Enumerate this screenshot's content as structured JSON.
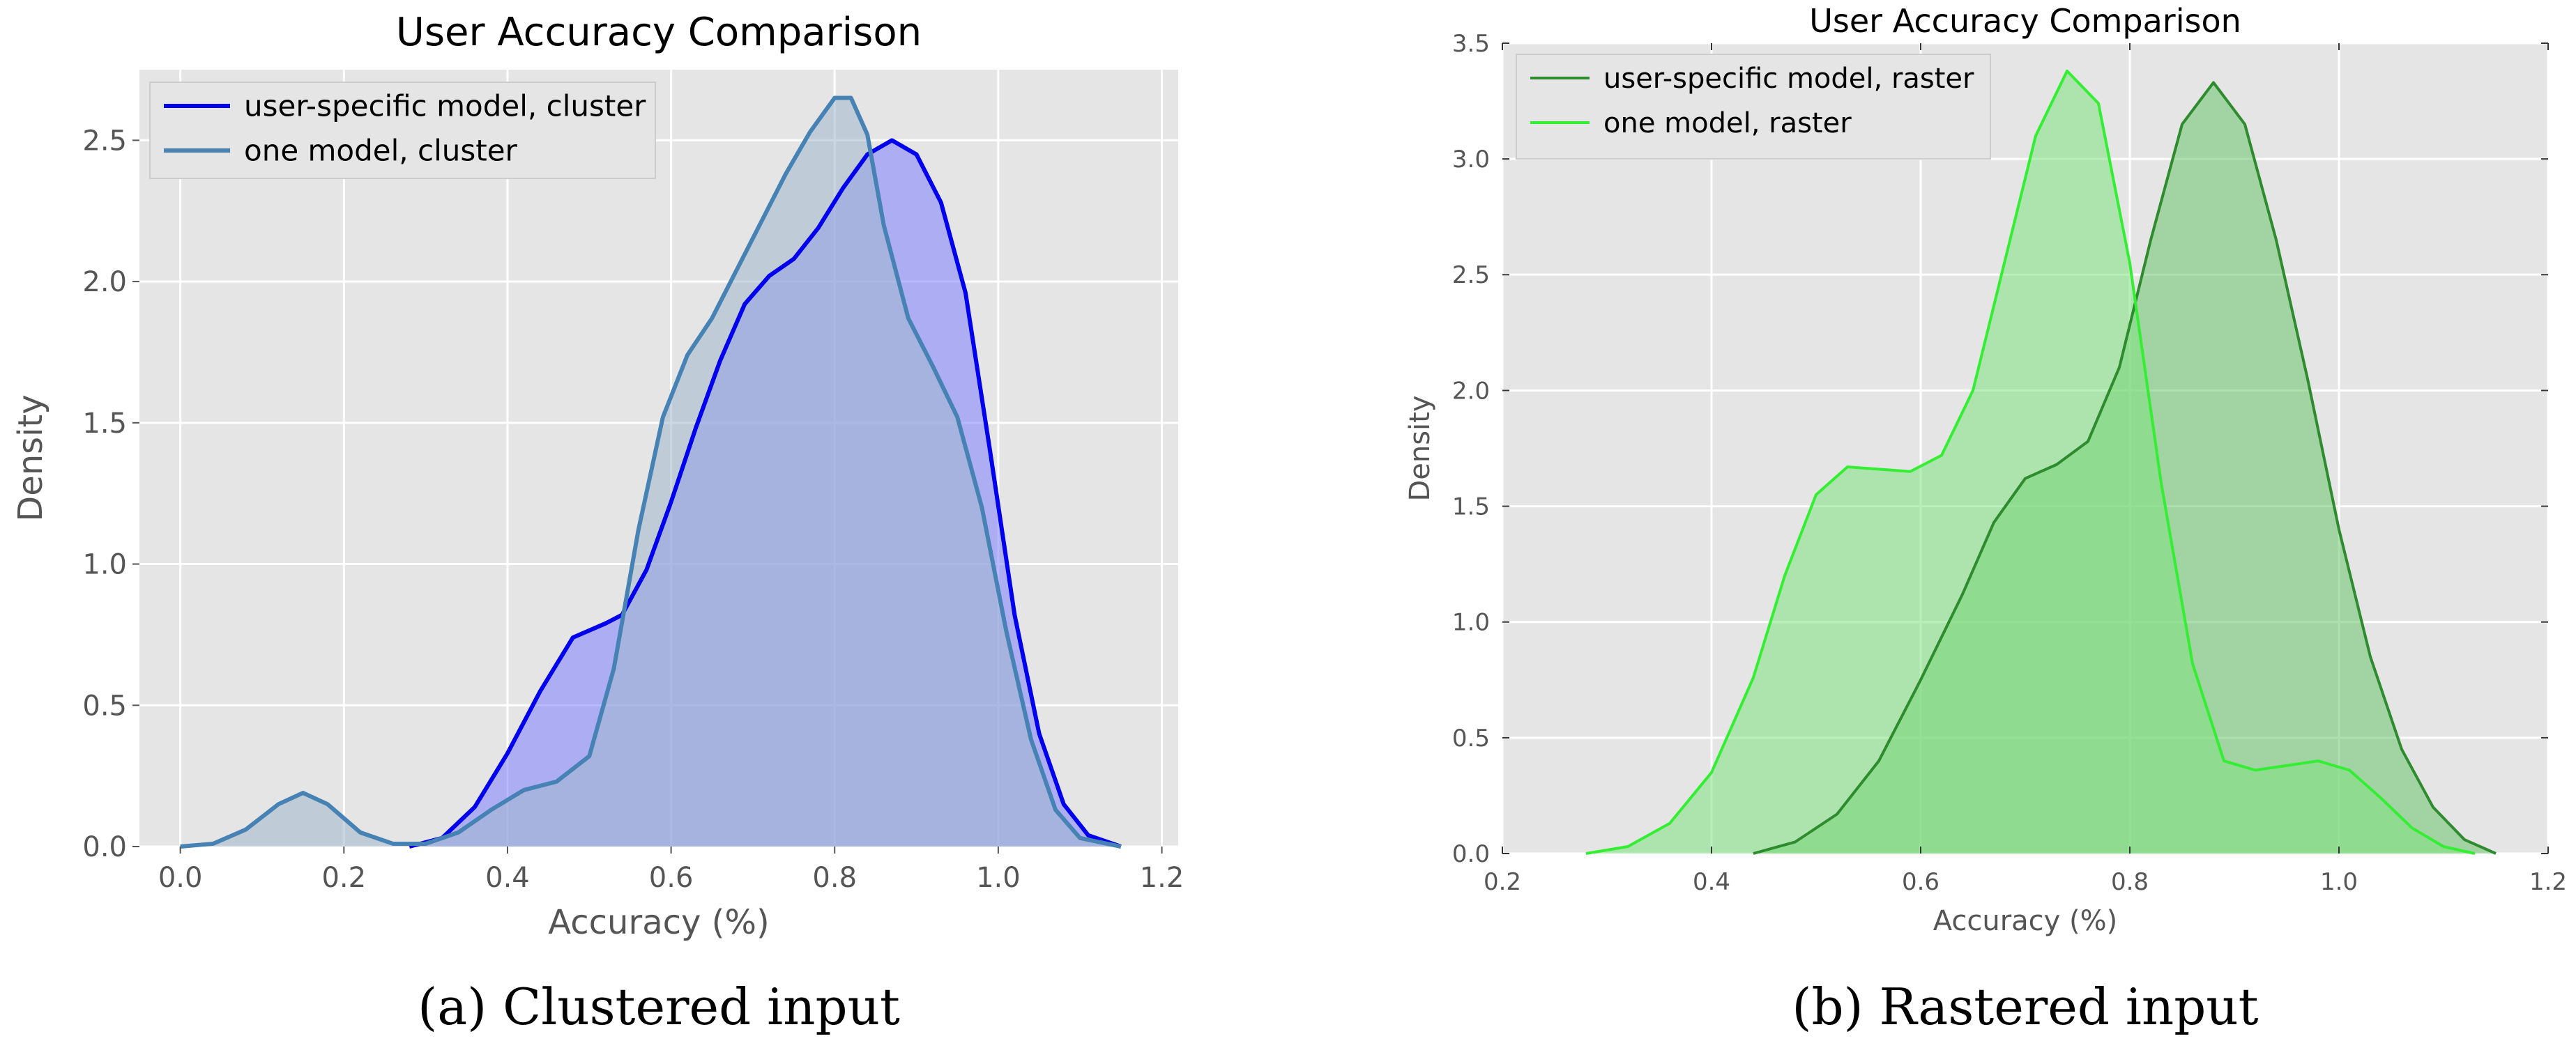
{
  "chart_data": [
    {
      "type": "area",
      "title": "User Accuracy Comparison",
      "xlabel": "Accuracy (%)",
      "ylabel": "Density",
      "caption": "(a) Clustered input",
      "xlim": [
        -0.05,
        1.22
      ],
      "ylim": [
        0,
        2.75
      ],
      "xticks": [
        0.0,
        0.2,
        0.4,
        0.6,
        0.8,
        1.0,
        1.2
      ],
      "xtick_labels": [
        "0.0",
        "0.2",
        "0.4",
        "0.6",
        "0.8",
        "1.0",
        "1.2"
      ],
      "yticks": [
        0.0,
        0.5,
        1.0,
        1.5,
        2.0,
        2.5
      ],
      "ytick_labels": [
        "0.0",
        "0.5",
        "1.0",
        "1.5",
        "2.0",
        "2.5"
      ],
      "grid": true,
      "legend": "top-left",
      "series": [
        {
          "name": "user-specific model, cluster",
          "color": "#0000ee",
          "fill": "#8080ff",
          "points": [
            [
              0.28,
              0.0
            ],
            [
              0.32,
              0.03
            ],
            [
              0.36,
              0.14
            ],
            [
              0.4,
              0.33
            ],
            [
              0.44,
              0.55
            ],
            [
              0.48,
              0.74
            ],
            [
              0.52,
              0.79
            ],
            [
              0.54,
              0.82
            ],
            [
              0.57,
              0.98
            ],
            [
              0.6,
              1.22
            ],
            [
              0.63,
              1.48
            ],
            [
              0.66,
              1.72
            ],
            [
              0.69,
              1.92
            ],
            [
              0.72,
              2.02
            ],
            [
              0.75,
              2.08
            ],
            [
              0.78,
              2.19
            ],
            [
              0.81,
              2.33
            ],
            [
              0.84,
              2.45
            ],
            [
              0.87,
              2.5
            ],
            [
              0.9,
              2.45
            ],
            [
              0.93,
              2.28
            ],
            [
              0.96,
              1.96
            ],
            [
              0.99,
              1.4
            ],
            [
              1.02,
              0.82
            ],
            [
              1.05,
              0.4
            ],
            [
              1.08,
              0.15
            ],
            [
              1.11,
              0.04
            ],
            [
              1.15,
              0.0
            ]
          ]
        },
        {
          "name": "one model, cluster",
          "color": "#4682b4",
          "fill": "#a0b8cc",
          "points": [
            [
              0.0,
              0.0
            ],
            [
              0.04,
              0.01
            ],
            [
              0.08,
              0.06
            ],
            [
              0.12,
              0.15
            ],
            [
              0.15,
              0.19
            ],
            [
              0.18,
              0.15
            ],
            [
              0.22,
              0.05
            ],
            [
              0.26,
              0.01
            ],
            [
              0.3,
              0.01
            ],
            [
              0.34,
              0.05
            ],
            [
              0.38,
              0.13
            ],
            [
              0.42,
              0.2
            ],
            [
              0.46,
              0.23
            ],
            [
              0.5,
              0.32
            ],
            [
              0.53,
              0.63
            ],
            [
              0.56,
              1.12
            ],
            [
              0.59,
              1.52
            ],
            [
              0.62,
              1.74
            ],
            [
              0.65,
              1.87
            ],
            [
              0.68,
              2.04
            ],
            [
              0.71,
              2.21
            ],
            [
              0.74,
              2.38
            ],
            [
              0.77,
              2.53
            ],
            [
              0.8,
              2.65
            ],
            [
              0.82,
              2.65
            ],
            [
              0.84,
              2.52
            ],
            [
              0.86,
              2.2
            ],
            [
              0.89,
              1.87
            ],
            [
              0.92,
              1.7
            ],
            [
              0.95,
              1.52
            ],
            [
              0.98,
              1.2
            ],
            [
              1.01,
              0.76
            ],
            [
              1.04,
              0.38
            ],
            [
              1.07,
              0.13
            ],
            [
              1.1,
              0.03
            ],
            [
              1.15,
              0.0
            ]
          ]
        }
      ]
    },
    {
      "type": "area",
      "title": "User Accuracy Comparison",
      "xlabel": "Accuracy (%)",
      "ylabel": "Density",
      "caption": "(b) Rastered input",
      "xlim": [
        0.2,
        1.2
      ],
      "ylim": [
        0,
        3.5
      ],
      "xticks": [
        0.2,
        0.4,
        0.6,
        0.8,
        1.0,
        1.2
      ],
      "xtick_labels": [
        "0.2",
        "0.4",
        "0.6",
        "0.8",
        "1.0",
        "1.2"
      ],
      "yticks": [
        0.0,
        0.5,
        1.0,
        1.5,
        2.0,
        2.5,
        3.0,
        3.5
      ],
      "ytick_labels": [
        "0.0",
        "0.5",
        "1.0",
        "1.5",
        "2.0",
        "2.5",
        "3.0",
        "3.5"
      ],
      "grid": true,
      "legend": "top-left",
      "series": [
        {
          "name": "user-specific model, raster",
          "color": "#2e8b2e",
          "fill": "#6cc56c",
          "points": [
            [
              0.44,
              0.0
            ],
            [
              0.48,
              0.05
            ],
            [
              0.52,
              0.17
            ],
            [
              0.56,
              0.4
            ],
            [
              0.6,
              0.75
            ],
            [
              0.64,
              1.12
            ],
            [
              0.67,
              1.43
            ],
            [
              0.7,
              1.62
            ],
            [
              0.73,
              1.68
            ],
            [
              0.76,
              1.78
            ],
            [
              0.79,
              2.1
            ],
            [
              0.82,
              2.65
            ],
            [
              0.85,
              3.15
            ],
            [
              0.88,
              3.33
            ],
            [
              0.91,
              3.15
            ],
            [
              0.94,
              2.65
            ],
            [
              0.97,
              2.05
            ],
            [
              1.0,
              1.4
            ],
            [
              1.03,
              0.85
            ],
            [
              1.06,
              0.45
            ],
            [
              1.09,
              0.2
            ],
            [
              1.12,
              0.06
            ],
            [
              1.15,
              0.0
            ]
          ]
        },
        {
          "name": "one model, raster",
          "color": "#33ee33",
          "fill": "#7fe27f",
          "points": [
            [
              0.28,
              0.0
            ],
            [
              0.32,
              0.03
            ],
            [
              0.36,
              0.13
            ],
            [
              0.4,
              0.35
            ],
            [
              0.44,
              0.76
            ],
            [
              0.47,
              1.2
            ],
            [
              0.5,
              1.55
            ],
            [
              0.53,
              1.67
            ],
            [
              0.56,
              1.66
            ],
            [
              0.59,
              1.65
            ],
            [
              0.62,
              1.72
            ],
            [
              0.65,
              2.0
            ],
            [
              0.68,
              2.55
            ],
            [
              0.71,
              3.1
            ],
            [
              0.74,
              3.38
            ],
            [
              0.77,
              3.24
            ],
            [
              0.8,
              2.55
            ],
            [
              0.83,
              1.6
            ],
            [
              0.86,
              0.82
            ],
            [
              0.89,
              0.4
            ],
            [
              0.92,
              0.36
            ],
            [
              0.95,
              0.38
            ],
            [
              0.98,
              0.4
            ],
            [
              1.01,
              0.36
            ],
            [
              1.04,
              0.24
            ],
            [
              1.07,
              0.11
            ],
            [
              1.1,
              0.03
            ],
            [
              1.13,
              0.0
            ]
          ]
        }
      ]
    }
  ]
}
